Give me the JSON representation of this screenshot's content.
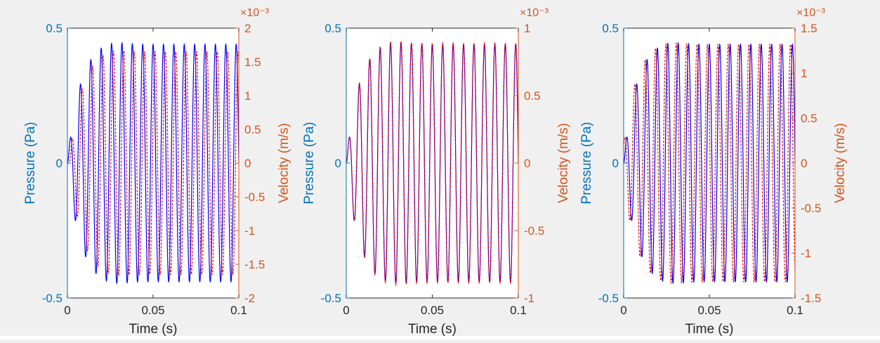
{
  "colors": {
    "background": "#f0f0f0",
    "plot_area": "#ffffff",
    "pressure_axis": "#0072bd",
    "velocity_axis": "#d95319",
    "pressure_line": "#0000ff",
    "velocity_line": "#ff0000",
    "axis_text": "#262626"
  },
  "chart_data": [
    {
      "type": "line",
      "xlabel": "Time (s)",
      "ylabel_left": "Pressure (Pa)",
      "ylabel_right": "Velocity (m/s)",
      "x_ticks": [
        "0",
        "0.05",
        "0.1"
      ],
      "xlim": [
        0,
        0.1
      ],
      "y_left_ticks": [
        "-0.5",
        "0",
        "0.5"
      ],
      "ylim_left": [
        -0.5,
        0.5
      ],
      "y_right_ticks": [
        "-2",
        "-1.5",
        "-1",
        "-0.5",
        "0",
        "0.5",
        "1",
        "1.5",
        "2"
      ],
      "ylim_right": [
        -2,
        2
      ],
      "right_exponent": "×10⁻³",
      "series": [
        {
          "axis": "left",
          "style": "solid",
          "frequency_hz": 165,
          "steady_amplitude": 0.44,
          "peak_amplitude": 0.455,
          "phase_shift_s": 0
        },
        {
          "axis": "right",
          "style": "dashed",
          "frequency_hz": 165,
          "steady_amplitude": 1.65,
          "peak_amplitude": 1.7,
          "phase_shift_s": 0.0011
        }
      ]
    },
    {
      "type": "line",
      "xlabel": "Time (s)",
      "ylabel_left": "Pressure (Pa)",
      "ylabel_right": "Velocity (m/s)",
      "x_ticks": [
        "0",
        "0.05",
        "0.1"
      ],
      "xlim": [
        0,
        0.1
      ],
      "y_left_ticks": [
        "-0.5",
        "0",
        "0.5"
      ],
      "ylim_left": [
        -0.5,
        0.5
      ],
      "y_right_ticks": [
        "-1",
        "-0.5",
        "0",
        "0.5",
        "1"
      ],
      "ylim_right": [
        -1,
        1
      ],
      "right_exponent": "×10⁻³",
      "series": [
        {
          "axis": "left",
          "style": "solid",
          "frequency_hz": 165,
          "steady_amplitude": 0.44,
          "peak_amplitude": 0.455,
          "phase_shift_s": 0
        },
        {
          "axis": "right",
          "style": "dashed",
          "frequency_hz": 165,
          "steady_amplitude": 0.89,
          "peak_amplitude": 0.925,
          "phase_shift_s": 0
        }
      ]
    },
    {
      "type": "line",
      "xlabel": "Time (s)",
      "ylabel_left": "Pressure (Pa)",
      "ylabel_right": "Velocity (m/s)",
      "x_ticks": [
        "0",
        "0.05",
        "0.1"
      ],
      "xlim": [
        0,
        0.1
      ],
      "y_left_ticks": [
        "-0.5",
        "0",
        "0.5"
      ],
      "ylim_left": [
        -0.5,
        0.5
      ],
      "y_right_ticks": [
        "-1.5",
        "-1",
        "-0.5",
        "0",
        "0.5",
        "1",
        "1.5"
      ],
      "ylim_right": [
        -1.5,
        1.5
      ],
      "right_exponent": "×10⁻³",
      "series": [
        {
          "axis": "left",
          "style": "solid",
          "frequency_hz": 165,
          "steady_amplitude": 0.44,
          "peak_amplitude": 0.455,
          "phase_shift_s": 0
        },
        {
          "axis": "right",
          "style": "dashed",
          "frequency_hz": 165,
          "steady_amplitude": 1.32,
          "peak_amplitude": 1.36,
          "phase_shift_s": -0.0011
        }
      ]
    }
  ]
}
